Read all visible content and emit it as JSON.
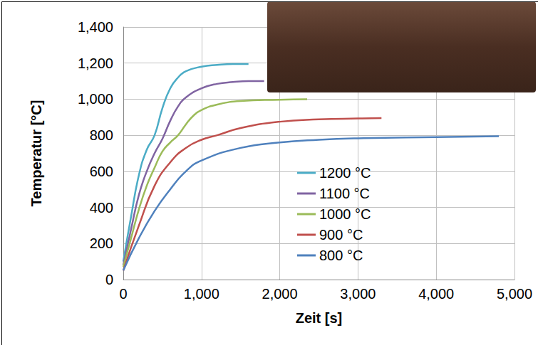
{
  "chart_data": {
    "type": "line",
    "x_label": "Zeit [s]",
    "y_label": "Temperatur [°C]",
    "xlim": [
      0,
      5000
    ],
    "xticks": [
      0,
      1000,
      2000,
      3000,
      4000,
      5000
    ],
    "ylim": [
      0,
      1400
    ],
    "yticks": [
      0,
      200,
      400,
      600,
      800,
      1000,
      1200,
      1400
    ],
    "grid": true,
    "legend": "lower center",
    "series": [
      {
        "name": "1200 °C",
        "color": "#4bacc6",
        "x": [
          0,
          100,
          200,
          300,
          400,
          500,
          600,
          700,
          800,
          1000,
          1200,
          1400,
          1600
        ],
        "values": [
          100,
          350,
          580,
          720,
          800,
          950,
          1060,
          1120,
          1155,
          1180,
          1190,
          1195,
          1195
        ]
      },
      {
        "name": "1100 °C",
        "color": "#8064a2",
        "x": [
          0,
          100,
          200,
          300,
          400,
          500,
          600,
          700,
          800,
          1000,
          1200,
          1400,
          1600,
          1800
        ],
        "values": [
          80,
          280,
          470,
          600,
          700,
          780,
          880,
          960,
          1010,
          1060,
          1085,
          1095,
          1100,
          1100
        ]
      },
      {
        "name": "1000 °C",
        "color": "#9bbb59",
        "x": [
          0,
          100,
          200,
          300,
          400,
          500,
          600,
          700,
          800,
          900,
          1000,
          1200,
          1500,
          2000,
          2350
        ],
        "values": [
          70,
          230,
          390,
          520,
          620,
          710,
          760,
          800,
          860,
          910,
          940,
          970,
          990,
          997,
          1000
        ]
      },
      {
        "name": "900 °C",
        "color": "#c0504d",
        "x": [
          0,
          200,
          400,
          600,
          800,
          1000,
          1200,
          1500,
          2000,
          2500,
          3000,
          3300
        ],
        "values": [
          50,
          300,
          520,
          650,
          730,
          775,
          800,
          840,
          875,
          888,
          893,
          895
        ]
      },
      {
        "name": "800 °C",
        "color": "#4f81bd",
        "x": [
          0,
          200,
          400,
          600,
          800,
          1000,
          1500,
          2000,
          2500,
          3000,
          4000,
          4800
        ],
        "values": [
          50,
          230,
          380,
          500,
          600,
          660,
          730,
          760,
          775,
          783,
          790,
          795
        ]
      }
    ]
  }
}
